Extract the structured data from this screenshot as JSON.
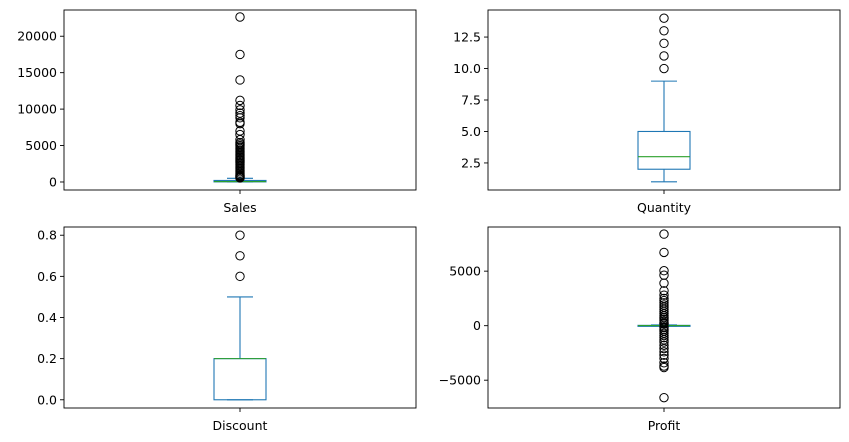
{
  "chart_data": [
    {
      "type": "box",
      "category": "Sales",
      "ylim": [
        -1100,
        23600
      ],
      "yticks": [
        0,
        5000,
        10000,
        15000,
        20000
      ],
      "ytick_labels": [
        "0",
        "5000",
        "10000",
        "15000",
        "20000"
      ],
      "stats": {
        "q1": 17,
        "median": 54,
        "q3": 210,
        "whisker_low": 0.44,
        "whisker_high": 498
      },
      "outliers": [
        22638,
        17500,
        13999,
        11200,
        10500,
        9900,
        9450,
        9100,
        8800,
        8200,
        8000,
        7000,
        6500,
        5800,
        5400,
        5200,
        5000,
        4800,
        4600,
        4400,
        4200,
        4000,
        3800,
        3600,
        3400,
        3200,
        3000,
        2800,
        2600,
        2400,
        2200,
        2000,
        1800,
        1600,
        1400,
        1200,
        1000,
        900,
        800,
        700,
        600,
        550
      ]
    },
    {
      "type": "box",
      "category": "Quantity",
      "ylim": [
        0.35,
        14.65
      ],
      "yticks": [
        2.5,
        5.0,
        7.5,
        10.0,
        12.5
      ],
      "ytick_labels": [
        "2.5",
        "5.0",
        "7.5",
        "10.0",
        "12.5"
      ],
      "stats": {
        "q1": 2,
        "median": 3,
        "q3": 5,
        "whisker_low": 1,
        "whisker_high": 9
      },
      "outliers": [
        10,
        11,
        12,
        13,
        14
      ]
    },
    {
      "type": "box",
      "category": "Discount",
      "ylim": [
        -0.04,
        0.84
      ],
      "yticks": [
        0.0,
        0.2,
        0.4,
        0.6,
        0.8
      ],
      "ytick_labels": [
        "0.0",
        "0.2",
        "0.4",
        "0.6",
        "0.8"
      ],
      "stats": {
        "q1": 0,
        "median": 0.2,
        "q3": 0.2,
        "whisker_low": 0,
        "whisker_high": 0.5
      },
      "outliers": [
        0.6,
        0.7,
        0.8
      ]
    },
    {
      "type": "box",
      "category": "Profit",
      "ylim": [
        -7550,
        9050
      ],
      "yticks": [
        -5000,
        0,
        5000
      ],
      "ytick_labels": [
        "−5000",
        "0",
        "5000"
      ],
      "stats": {
        "q1": 1.7,
        "median": 8.7,
        "q3": 29,
        "whisker_low": -39,
        "whisker_high": 70
      },
      "outliers": [
        8400,
        6720,
        5040,
        4630,
        3900,
        3200,
        2800,
        2500,
        2300,
        2100,
        1900,
        1700,
        1500,
        1300,
        1100,
        900,
        750,
        600,
        450,
        300,
        200,
        150,
        -100,
        -200,
        -350,
        -500,
        -700,
        -900,
        -1100,
        -1300,
        -1500,
        -1800,
        -2100,
        -2400,
        -2700,
        -3000,
        -3400,
        -3700,
        -3840,
        -6600
      ]
    }
  ],
  "colors": {
    "box": "#1f77b4",
    "median": "#2ca02c",
    "flier": "#000000"
  }
}
